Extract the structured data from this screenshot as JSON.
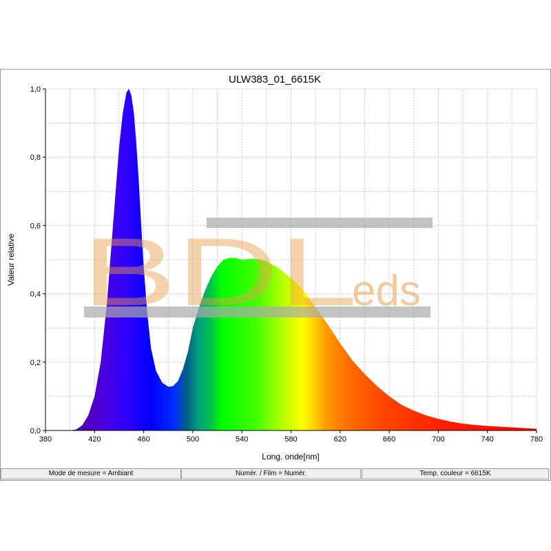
{
  "window": {
    "status_bar": {
      "mode": "Mode de mesure = Ambiant",
      "film": "Numér. / Film = Numér.",
      "color_temp": "Temp. couleur = 6615K"
    }
  },
  "watermark": {
    "main": "BDL",
    "suffix": "eds",
    "colors": {
      "text": "#e8a04a",
      "bars": "#aaaaaa"
    }
  },
  "chart_data": {
    "type": "area",
    "title": "ULW383_01_6615K",
    "xlabel": "Long. onde[nm]",
    "ylabel": "Valeur relative",
    "xlim": [
      380,
      780
    ],
    "ylim": [
      0,
      1.0
    ],
    "x_ticks": [
      380,
      420,
      460,
      500,
      540,
      580,
      620,
      660,
      700,
      740,
      780
    ],
    "x_tick_labels": [
      "380",
      "420",
      "460",
      "500",
      "540",
      "580",
      "620",
      "660",
      "700",
      "740",
      "780"
    ],
    "y_ticks": [
      0,
      0.2,
      0.4,
      0.6,
      0.8,
      1.0
    ],
    "y_tick_labels": [
      "0,0",
      "0,2",
      "0,4",
      "0,6",
      "0,8",
      "1,0"
    ],
    "grid": true,
    "fill": "visible-spectrum-gradient",
    "series": [
      {
        "x": [
          400,
          405,
          410,
          415,
          420,
          425,
          430,
          435,
          440,
          443,
          446,
          448,
          450,
          452,
          454,
          456,
          458,
          460,
          463,
          466,
          470,
          475,
          480,
          484,
          488,
          492,
          496,
          500,
          505,
          510,
          515,
          520,
          525,
          530,
          535,
          540,
          545,
          550,
          555,
          560,
          565,
          570,
          575,
          580,
          585,
          590,
          595,
          600,
          610,
          620,
          630,
          640,
          650,
          660,
          670,
          680,
          690,
          700,
          710,
          720,
          730,
          740,
          750,
          760,
          770,
          780
        ],
        "values": [
          0.0,
          0.003,
          0.015,
          0.045,
          0.1,
          0.2,
          0.37,
          0.6,
          0.83,
          0.93,
          0.99,
          1.0,
          0.98,
          0.93,
          0.84,
          0.73,
          0.6,
          0.48,
          0.34,
          0.24,
          0.175,
          0.14,
          0.128,
          0.13,
          0.145,
          0.18,
          0.23,
          0.3,
          0.36,
          0.41,
          0.45,
          0.48,
          0.5,
          0.505,
          0.505,
          0.5,
          0.502,
          0.503,
          0.5,
          0.495,
          0.485,
          0.475,
          0.46,
          0.445,
          0.43,
          0.41,
          0.385,
          0.36,
          0.31,
          0.255,
          0.205,
          0.165,
          0.13,
          0.1,
          0.075,
          0.058,
          0.044,
          0.034,
          0.026,
          0.02,
          0.016,
          0.013,
          0.011,
          0.009,
          0.007,
          0.005
        ]
      }
    ]
  }
}
